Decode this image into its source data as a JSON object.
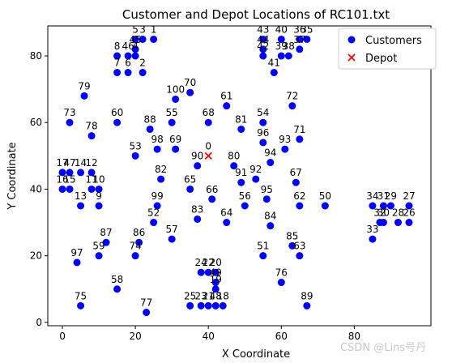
{
  "chart_data": {
    "type": "scatter",
    "title": "Customer and Depot Locations of RC101.txt",
    "xlabel": "X Coordinate",
    "ylabel": "Y Coordinate",
    "xlim": [
      -4,
      101
    ],
    "ylim": [
      -1,
      89
    ],
    "xticks": [
      0,
      20,
      40,
      60,
      80
    ],
    "yticks": [
      0,
      20,
      40,
      60,
      80
    ],
    "legend": {
      "placement": "top-right",
      "entries": [
        {
          "name": "Customers",
          "marker": "circle",
          "color": "#0000ff"
        },
        {
          "name": "Depot",
          "marker": "x",
          "color": "#ff0000"
        }
      ]
    },
    "series": [
      {
        "name": "Customers",
        "color": "#0000ff",
        "points": [
          {
            "id": "1",
            "x": 25,
            "y": 85
          },
          {
            "id": "2",
            "x": 22,
            "y": 75
          },
          {
            "id": "3",
            "x": 22,
            "y": 85
          },
          {
            "id": "4",
            "x": 20,
            "y": 80
          },
          {
            "id": "5",
            "x": 20,
            "y": 85
          },
          {
            "id": "6",
            "x": 18,
            "y": 75
          },
          {
            "id": "7",
            "x": 15,
            "y": 75
          },
          {
            "id": "8",
            "x": 15,
            "y": 80
          },
          {
            "id": "9",
            "x": 10,
            "y": 35
          },
          {
            "id": "10",
            "x": 10,
            "y": 40
          },
          {
            "id": "11",
            "x": 8,
            "y": 40
          },
          {
            "id": "12",
            "x": 8,
            "y": 45
          },
          {
            "id": "13",
            "x": 5,
            "y": 35
          },
          {
            "id": "14",
            "x": 5,
            "y": 45
          },
          {
            "id": "15",
            "x": 2,
            "y": 40
          },
          {
            "id": "16",
            "x": 0,
            "y": 40
          },
          {
            "id": "17",
            "x": 0,
            "y": 45
          },
          {
            "id": "18",
            "x": 44,
            "y": 5
          },
          {
            "id": "19",
            "x": 42,
            "y": 10
          },
          {
            "id": "20",
            "x": 42,
            "y": 15
          },
          {
            "id": "21",
            "x": 40,
            "y": 5
          },
          {
            "id": "22",
            "x": 40,
            "y": 15
          },
          {
            "id": "23",
            "x": 38,
            "y": 5
          },
          {
            "id": "24",
            "x": 38,
            "y": 15
          },
          {
            "id": "25",
            "x": 35,
            "y": 5
          },
          {
            "id": "26",
            "x": 95,
            "y": 30
          },
          {
            "id": "27",
            "x": 95,
            "y": 35
          },
          {
            "id": "28",
            "x": 92,
            "y": 30
          },
          {
            "id": "29",
            "x": 90,
            "y": 35
          },
          {
            "id": "30",
            "x": 88,
            "y": 30
          },
          {
            "id": "31",
            "x": 88,
            "y": 35
          },
          {
            "id": "32",
            "x": 87,
            "y": 30
          },
          {
            "id": "33",
            "x": 85,
            "y": 25
          },
          {
            "id": "34",
            "x": 85,
            "y": 35
          },
          {
            "id": "35",
            "x": 67,
            "y": 85
          },
          {
            "id": "36",
            "x": 65,
            "y": 85
          },
          {
            "id": "37",
            "x": 65,
            "y": 82
          },
          {
            "id": "38",
            "x": 62,
            "y": 80
          },
          {
            "id": "39",
            "x": 60,
            "y": 80
          },
          {
            "id": "40",
            "x": 60,
            "y": 85
          },
          {
            "id": "41",
            "x": 58,
            "y": 75
          },
          {
            "id": "42",
            "x": 55,
            "y": 80
          },
          {
            "id": "43",
            "x": 55,
            "y": 85
          },
          {
            "id": "44",
            "x": 55,
            "y": 82
          },
          {
            "id": "45",
            "x": 20,
            "y": 82
          },
          {
            "id": "46",
            "x": 18,
            "y": 80
          },
          {
            "id": "47",
            "x": 2,
            "y": 45
          },
          {
            "id": "48",
            "x": 42,
            "y": 5
          },
          {
            "id": "49",
            "x": 42,
            "y": 12
          },
          {
            "id": "50",
            "x": 72,
            "y": 35
          },
          {
            "id": "51",
            "x": 55,
            "y": 20
          },
          {
            "id": "52",
            "x": 25,
            "y": 30
          },
          {
            "id": "53",
            "x": 20,
            "y": 50
          },
          {
            "id": "54",
            "x": 55,
            "y": 60
          },
          {
            "id": "55",
            "x": 30,
            "y": 60
          },
          {
            "id": "56",
            "x": 50,
            "y": 35
          },
          {
            "id": "57",
            "x": 30,
            "y": 25
          },
          {
            "id": "58",
            "x": 15,
            "y": 10
          },
          {
            "id": "59",
            "x": 10,
            "y": 20
          },
          {
            "id": "60",
            "x": 15,
            "y": 60
          },
          {
            "id": "61",
            "x": 45,
            "y": 65
          },
          {
            "id": "62",
            "x": 65,
            "y": 35
          },
          {
            "id": "63",
            "x": 65,
            "y": 20
          },
          {
            "id": "64",
            "x": 45,
            "y": 30
          },
          {
            "id": "65",
            "x": 35,
            "y": 40
          },
          {
            "id": "66",
            "x": 41,
            "y": 37
          },
          {
            "id": "67",
            "x": 64,
            "y": 42
          },
          {
            "id": "68",
            "x": 40,
            "y": 60
          },
          {
            "id": "69",
            "x": 31,
            "y": 52
          },
          {
            "id": "70",
            "x": 35,
            "y": 69
          },
          {
            "id": "71",
            "x": 65,
            "y": 55
          },
          {
            "id": "72",
            "x": 63,
            "y": 65
          },
          {
            "id": "73",
            "x": 2,
            "y": 60
          },
          {
            "id": "74",
            "x": 20,
            "y": 20
          },
          {
            "id": "75",
            "x": 5,
            "y": 5
          },
          {
            "id": "76",
            "x": 60,
            "y": 12
          },
          {
            "id": "77",
            "x": 23,
            "y": 3
          },
          {
            "id": "78",
            "x": 8,
            "y": 56
          },
          {
            "id": "79",
            "x": 6,
            "y": 68
          },
          {
            "id": "80",
            "x": 47,
            "y": 47
          },
          {
            "id": "81",
            "x": 49,
            "y": 58
          },
          {
            "id": "82",
            "x": 27,
            "y": 43
          },
          {
            "id": "83",
            "x": 37,
            "y": 31
          },
          {
            "id": "84",
            "x": 57,
            "y": 29
          },
          {
            "id": "85",
            "x": 63,
            "y": 23
          },
          {
            "id": "86",
            "x": 21,
            "y": 24
          },
          {
            "id": "87",
            "x": 12,
            "y": 24
          },
          {
            "id": "88",
            "x": 24,
            "y": 58
          },
          {
            "id": "89",
            "x": 67,
            "y": 5
          },
          {
            "id": "90",
            "x": 37,
            "y": 47
          },
          {
            "id": "91",
            "x": 49,
            "y": 42
          },
          {
            "id": "92",
            "x": 53,
            "y": 43
          },
          {
            "id": "93",
            "x": 61,
            "y": 52
          },
          {
            "id": "94",
            "x": 57,
            "y": 48
          },
          {
            "id": "95",
            "x": 56,
            "y": 37
          },
          {
            "id": "96",
            "x": 55,
            "y": 54
          },
          {
            "id": "97",
            "x": 4,
            "y": 18
          },
          {
            "id": "98",
            "x": 26,
            "y": 52
          },
          {
            "id": "99",
            "x": 26,
            "y": 35
          },
          {
            "id": "100",
            "x": 31,
            "y": 67
          }
        ]
      },
      {
        "name": "Depot",
        "color": "#ff0000",
        "points": [
          {
            "id": "0",
            "x": 40,
            "y": 50
          }
        ]
      }
    ]
  },
  "watermark": "CSDN @Lins号丹"
}
